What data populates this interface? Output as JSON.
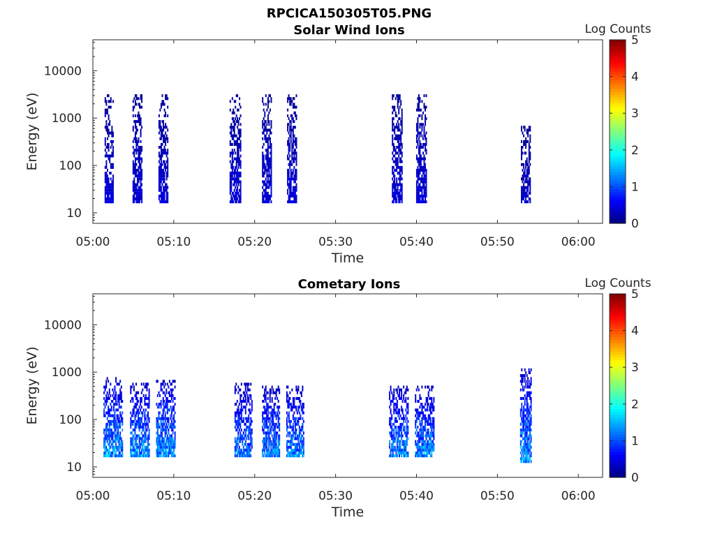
{
  "figure_title": "RPCICA150305T05.PNG",
  "chart_data": [
    {
      "type": "heatmap",
      "title": "Solar Wind Ions",
      "xlabel": "Time",
      "ylabel": "Energy (eV)",
      "x_ticks": [
        "05:00",
        "05:10",
        "05:20",
        "05:30",
        "05:40",
        "05:50",
        "06:00"
      ],
      "y_ticks": [
        "10",
        "100",
        "1000",
        "10000"
      ],
      "y_scale": "log",
      "xlim_minutes": [
        0,
        63
      ],
      "ylim": [
        6,
        45000
      ],
      "colorbar": {
        "label": "Log Counts",
        "ticks": [
          "0",
          "1",
          "2",
          "3",
          "4",
          "5"
        ],
        "range": [
          0,
          5
        ],
        "colormap": "jet"
      },
      "bursts": [
        {
          "t": 2.0,
          "duration": 1.1,
          "emin": 17,
          "emax": 3000,
          "peak_log_counts": 0.6
        },
        {
          "t": 5.5,
          "duration": 1.2,
          "emin": 17,
          "emax": 3000,
          "peak_log_counts": 0.6
        },
        {
          "t": 8.7,
          "duration": 1.2,
          "emin": 17,
          "emax": 3000,
          "peak_log_counts": 0.6
        },
        {
          "t": 17.6,
          "duration": 1.4,
          "emin": 17,
          "emax": 3000,
          "peak_log_counts": 0.6
        },
        {
          "t": 21.5,
          "duration": 1.2,
          "emin": 17,
          "emax": 3000,
          "peak_log_counts": 0.6
        },
        {
          "t": 24.6,
          "duration": 1.2,
          "emin": 17,
          "emax": 3000,
          "peak_log_counts": 0.6
        },
        {
          "t": 37.6,
          "duration": 1.3,
          "emin": 17,
          "emax": 3000,
          "peak_log_counts": 0.6
        },
        {
          "t": 40.6,
          "duration": 1.3,
          "emin": 17,
          "emax": 3000,
          "peak_log_counts": 0.6
        },
        {
          "t": 53.5,
          "duration": 1.2,
          "emin": 17,
          "emax": 700,
          "peak_log_counts": 0.5
        }
      ]
    },
    {
      "type": "heatmap",
      "title": "Cometary Ions",
      "xlabel": "Time",
      "ylabel": "Energy (eV)",
      "x_ticks": [
        "05:00",
        "05:10",
        "05:20",
        "05:30",
        "05:40",
        "05:50",
        "06:00"
      ],
      "y_ticks": [
        "10",
        "100",
        "1000",
        "10000"
      ],
      "y_scale": "log",
      "xlim_minutes": [
        0,
        63
      ],
      "ylim": [
        6,
        45000
      ],
      "colorbar": {
        "label": "Log Counts",
        "ticks": [
          "0",
          "1",
          "2",
          "3",
          "4",
          "5"
        ],
        "range": [
          0,
          5
        ],
        "colormap": "jet"
      },
      "bursts": [
        {
          "t": 2.5,
          "duration": 2.4,
          "emin": 15,
          "emax": 800,
          "peak_log_counts": 1.9
        },
        {
          "t": 5.8,
          "duration": 2.4,
          "emin": 15,
          "emax": 600,
          "peak_log_counts": 1.9
        },
        {
          "t": 9.0,
          "duration": 2.4,
          "emin": 15,
          "emax": 700,
          "peak_log_counts": 1.9
        },
        {
          "t": 18.6,
          "duration": 2.2,
          "emin": 15,
          "emax": 600,
          "peak_log_counts": 1.6
        },
        {
          "t": 22.0,
          "duration": 2.2,
          "emin": 15,
          "emax": 500,
          "peak_log_counts": 1.8
        },
        {
          "t": 25.0,
          "duration": 2.2,
          "emin": 15,
          "emax": 500,
          "peak_log_counts": 1.8
        },
        {
          "t": 37.8,
          "duration": 2.4,
          "emin": 15,
          "emax": 500,
          "peak_log_counts": 1.8
        },
        {
          "t": 41.0,
          "duration": 2.4,
          "emin": 15,
          "emax": 500,
          "peak_log_counts": 1.8
        },
        {
          "t": 53.5,
          "duration": 1.4,
          "emin": 12,
          "emax": 1200,
          "peak_log_counts": 1.9
        }
      ]
    }
  ]
}
